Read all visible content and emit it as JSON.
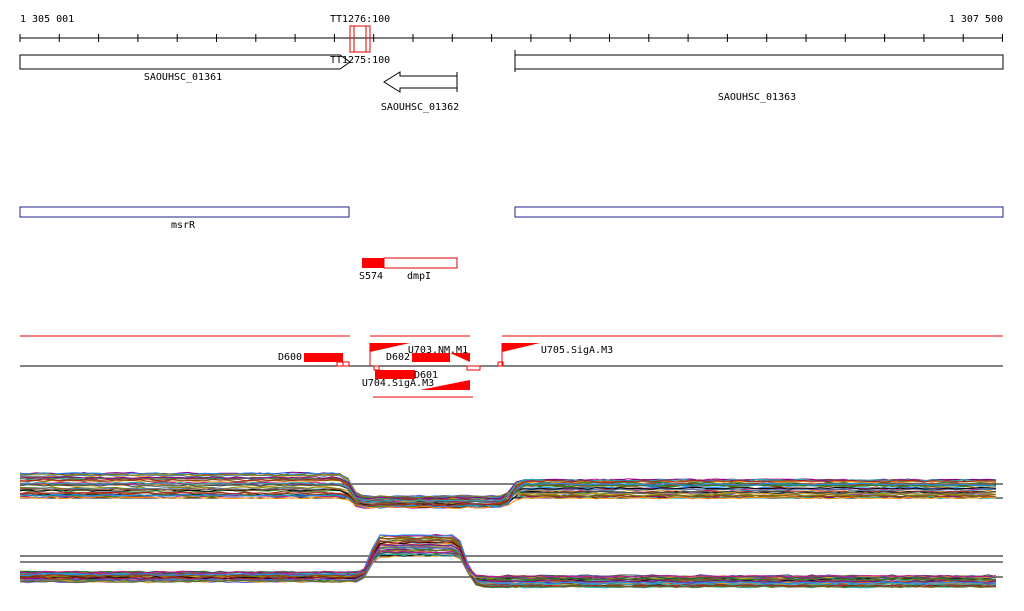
{
  "ruler": {
    "start": "1 305 001",
    "end": "1 307 500"
  },
  "terminators": [
    "TT1276:100",
    "TT1275:100"
  ],
  "genes": [
    "SAOUHSC_01361",
    "SAOUHSC_01362",
    "SAOUHSC_01363"
  ],
  "operons": [
    "msrR"
  ],
  "rnas": [
    "S574",
    "dmpI"
  ],
  "features": [
    "D600",
    "D602",
    "D601",
    "U703.NM.M1",
    "U704.SigA.M3",
    "U705.SigA.M3"
  ]
}
